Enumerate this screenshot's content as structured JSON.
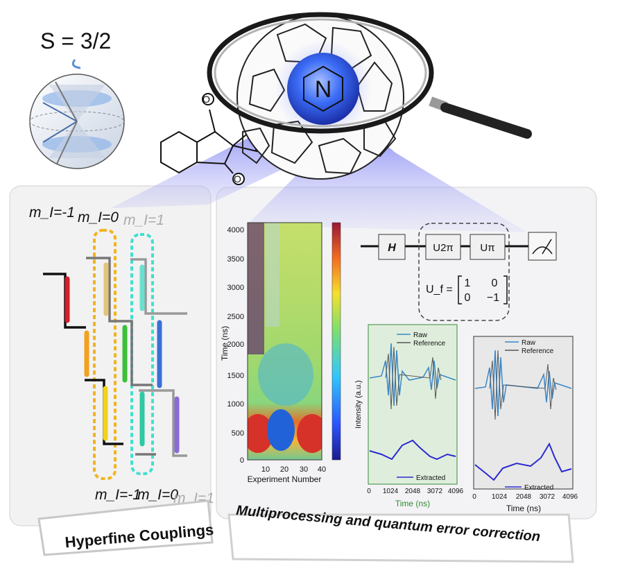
{
  "spin": {
    "label": "S = 3/2"
  },
  "hyperfine": {
    "top_labels": [
      "m_I=-1",
      "m_I=0",
      "m_I=1"
    ],
    "bottom_labels": [
      "m_I=-1",
      "m_I=0",
      "m_I=1"
    ],
    "caption": "Hyperfine Couplings"
  },
  "molecule": {
    "atom_label": "N"
  },
  "heatmap": {
    "ylabel": "Time (ns)",
    "xlabel": "Experiment Number",
    "yticks": [
      "0",
      "500",
      "1000",
      "1500",
      "2000",
      "2500",
      "3000",
      "3500",
      "4000"
    ],
    "xticks": [
      "10",
      "20",
      "30",
      "40"
    ]
  },
  "circuit": {
    "gates": [
      "H",
      "U2π",
      "Uπ"
    ],
    "matrix_label": "U_f =",
    "matrix": [
      [
        "1",
        "0"
      ],
      [
        "0",
        "−1"
      ]
    ]
  },
  "signal_left": {
    "legend": [
      "Raw",
      "Reference"
    ],
    "bottom_legend": "Extracted",
    "ylabel": "Intensity (a.u.)",
    "xlabel": "Time (ns)",
    "xticks": [
      "0",
      "1024",
      "2048",
      "3072",
      "4096"
    ]
  },
  "signal_right": {
    "legend": [
      "Raw",
      "Reference"
    ],
    "bottom_legend": "Extracted",
    "xlabel": "Time (ns)",
    "xticks": [
      "0",
      "1024",
      "2048",
      "3072",
      "4096"
    ]
  },
  "caption_right": "Multiprocessing and quantum error correction",
  "colors": {
    "arrow_red": "#d11f2e",
    "arrow_orange": "#f3a11f",
    "arrow_yellow": "#f1d21d",
    "arrow_green": "#3fbf3a",
    "arrow_teal": "#2ec9a4",
    "arrow_blue": "#3a6fd6",
    "arrow_purple": "#8b6cd6",
    "box_yellow": "#f2b321",
    "box_teal": "#3fe0d0",
    "raw": "#3a86c8",
    "reference": "#555555",
    "extracted": "#2a2ad0"
  }
}
